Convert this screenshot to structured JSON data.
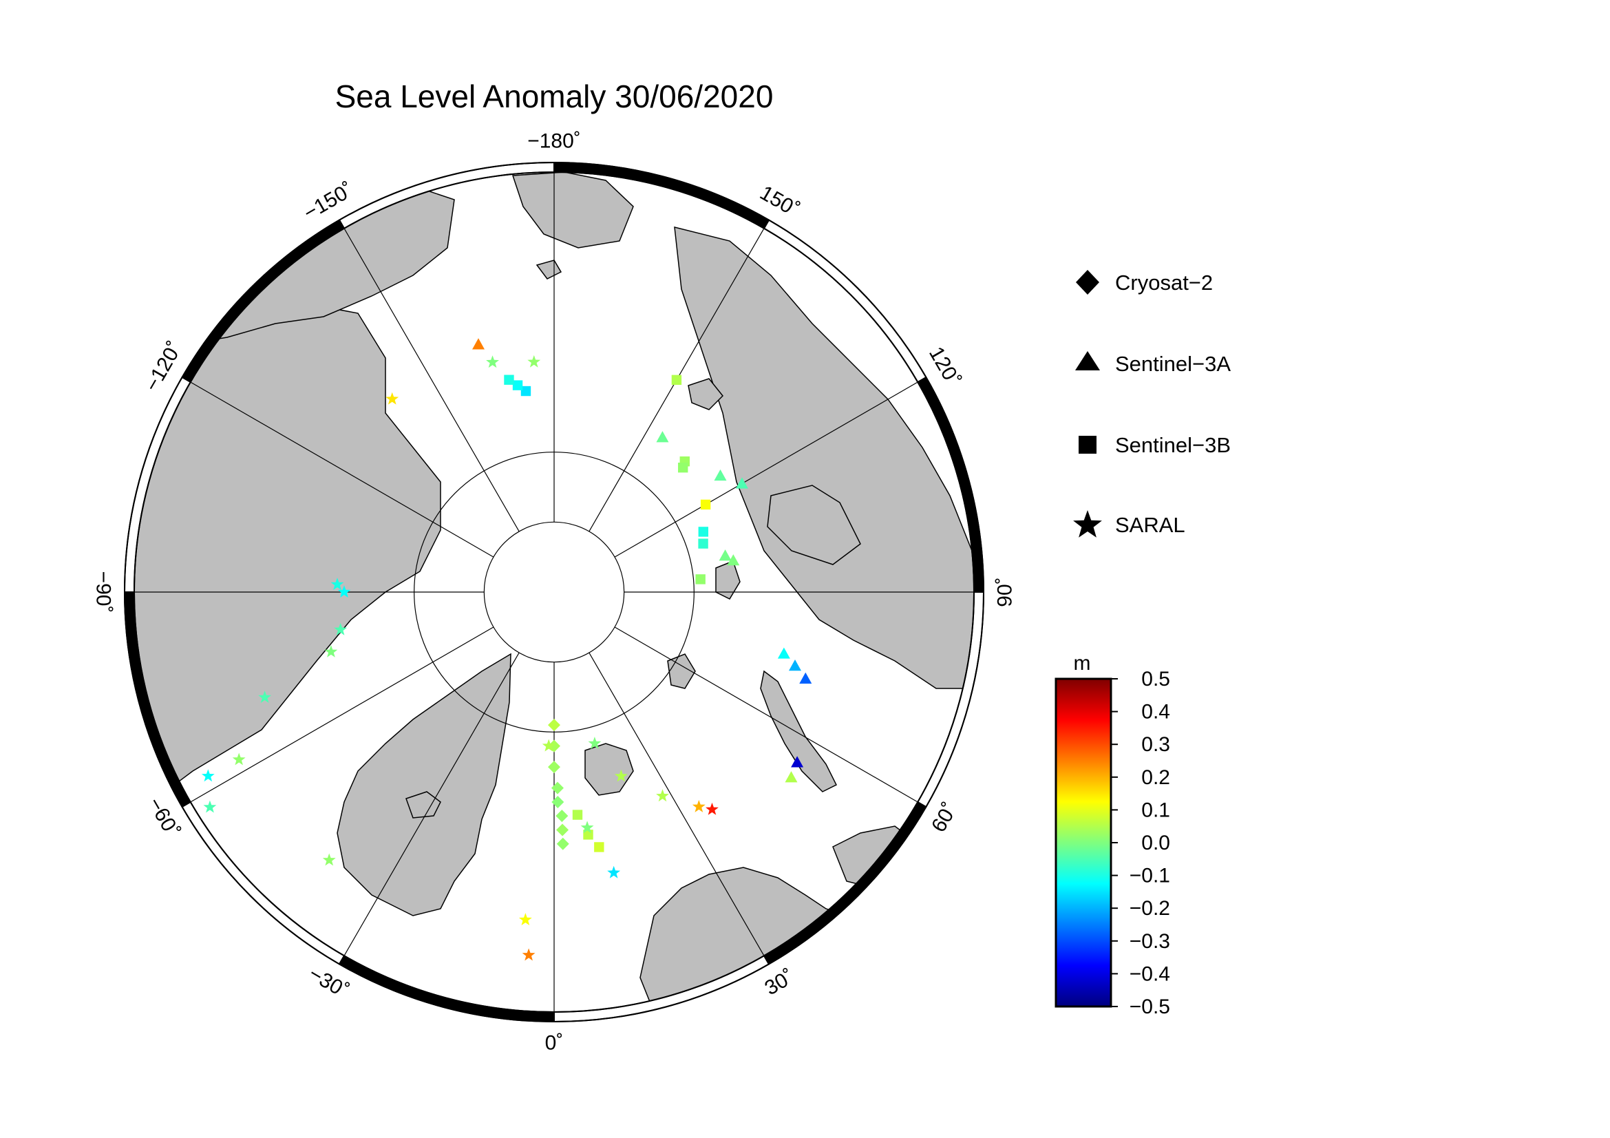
{
  "title": "Sea Level Anomaly 30/06/2020",
  "map": {
    "projection": "north-polar-stereographic",
    "ocean_color": "#ffffff",
    "land_color": "#bebebe",
    "meridian_labels": [
      {
        "lon": -180,
        "text": "−180˚"
      },
      {
        "lon": -150,
        "text": "−150˚"
      },
      {
        "lon": -120,
        "text": "−120˚"
      },
      {
        "lon": -90,
        "text": "−90˚"
      },
      {
        "lon": -60,
        "text": "−60˚"
      },
      {
        "lon": -30,
        "text": "−30˚"
      },
      {
        "lon": 0,
        "text": "0˚"
      },
      {
        "lon": 30,
        "text": "30˚"
      },
      {
        "lon": 60,
        "text": "60˚"
      },
      {
        "lon": 90,
        "text": "90˚"
      },
      {
        "lon": 120,
        "text": "120˚"
      },
      {
        "lon": 150,
        "text": "150˚"
      }
    ]
  },
  "legend": [
    {
      "symbol": "diamond",
      "label": "Cryosat−2"
    },
    {
      "symbol": "triangle",
      "label": "Sentinel−3A"
    },
    {
      "symbol": "square",
      "label": "Sentinel−3B"
    },
    {
      "symbol": "star",
      "label": "SARAL"
    }
  ],
  "colorbar": {
    "unit": "m",
    "min": -0.5,
    "max": 0.5,
    "tick_labels": [
      "0.5",
      "0.4",
      "0.3",
      "0.2",
      "0.1",
      "0.0",
      "−0.1",
      "−0.2",
      "−0.3",
      "−0.4",
      "−0.5"
    ],
    "colormap": [
      "#00007f",
      "#0000ff",
      "#007fff",
      "#00ffff",
      "#7fff7f",
      "#ffff00",
      "#ff7f00",
      "#ff0000",
      "#7f0000"
    ]
  },
  "chart_data": {
    "type": "scatter",
    "title": "Sea Level Anomaly 30/06/2020",
    "value_unit": "m",
    "value_range": [
      -0.5,
      0.5
    ],
    "series": [
      {
        "name": "Cryosat−2",
        "symbol": "diamond",
        "points": [
          {
            "lon": 2,
            "lat": 72.0,
            "sla": 0.02
          },
          {
            "lon": 2,
            "lat": 73.0,
            "sla": 0.03
          },
          {
            "lon": 2,
            "lat": 74.0,
            "sla": 0.02
          },
          {
            "lon": 1,
            "lat": 75.0,
            "sla": 0.01
          },
          {
            "lon": 1,
            "lat": 76.0,
            "sla": 0.02
          },
          {
            "lon": 0,
            "lat": 77.5,
            "sla": 0.03
          },
          {
            "lon": 0,
            "lat": 79.0,
            "sla": 0.04
          },
          {
            "lon": 0,
            "lat": 80.5,
            "sla": 0.06
          }
        ]
      },
      {
        "name": "Sentinel−3A",
        "symbol": "triangle",
        "points": [
          {
            "lon": -163,
            "lat": 71.5,
            "sla": 0.25
          },
          {
            "lon": 120,
            "lat": 74.5,
            "sla": -0.05
          },
          {
            "lon": 125,
            "lat": 75.5,
            "sla": -0.03
          },
          {
            "lon": 145,
            "lat": 76.5,
            "sla": -0.02
          },
          {
            "lon": 102,
            "lat": 77.5,
            "sla": -0.01
          },
          {
            "lon": 100,
            "lat": 77.0,
            "sla": 0.0
          },
          {
            "lon": 75,
            "lat": 73.0,
            "sla": -0.12
          },
          {
            "lon": 73,
            "lat": 72.0,
            "sla": -0.2
          },
          {
            "lon": 71,
            "lat": 71.0,
            "sla": -0.28
          },
          {
            "lon": 55,
            "lat": 68.8,
            "sla": -0.42
          },
          {
            "lon": 52,
            "lat": 68.5,
            "sla": 0.05
          }
        ]
      },
      {
        "name": "Sentinel−3B",
        "symbol": "square",
        "points": [
          {
            "lon": -172,
            "lat": 75.5,
            "sla": -0.15
          },
          {
            "lon": -170,
            "lat": 75.0,
            "sla": -0.12
          },
          {
            "lon": -168,
            "lat": 74.5,
            "sla": -0.1
          },
          {
            "lon": 150,
            "lat": 72.5,
            "sla": 0.05
          },
          {
            "lon": 135,
            "lat": 76.8,
            "sla": 0.03
          },
          {
            "lon": 134,
            "lat": 77.2,
            "sla": 0.02
          },
          {
            "lon": 120,
            "lat": 77.5,
            "sla": 0.12
          },
          {
            "lon": 112,
            "lat": 78.5,
            "sla": -0.1
          },
          {
            "lon": 108,
            "lat": 78.8,
            "sla": -0.08
          },
          {
            "lon": 95,
            "lat": 79.5,
            "sla": 0.02
          },
          {
            "lon": 10,
            "lat": 71.5,
            "sla": 0.08
          },
          {
            "lon": 8,
            "lat": 72.5,
            "sla": 0.06
          },
          {
            "lon": 6,
            "lat": 74.0,
            "sla": 0.05
          }
        ]
      },
      {
        "name": "SARAL",
        "symbol": "star",
        "points": [
          {
            "lon": -175,
            "lat": 73.5,
            "sla": 0.02
          },
          {
            "lon": -165,
            "lat": 73.0,
            "sla": 0.0
          },
          {
            "lon": -140,
            "lat": 72.0,
            "sla": 0.15
          },
          {
            "lon": -92,
            "lat": 74.5,
            "sla": -0.1
          },
          {
            "lon": -90,
            "lat": 75.0,
            "sla": -0.12
          },
          {
            "lon": -80,
            "lat": 74.5,
            "sla": -0.05
          },
          {
            "lon": -75,
            "lat": 73.5,
            "sla": 0.0
          },
          {
            "lon": -70,
            "lat": 68.0,
            "sla": -0.05
          },
          {
            "lon": -62,
            "lat": 64.5,
            "sla": 0.02
          },
          {
            "lon": -62,
            "lat": 62.0,
            "sla": -0.12
          },
          {
            "lon": -58,
            "lat": 61.0,
            "sla": -0.05
          },
          {
            "lon": -40,
            "lat": 65.0,
            "sla": 0.02
          },
          {
            "lon": -5,
            "lat": 66.5,
            "sla": 0.12
          },
          {
            "lon": -4,
            "lat": 64.0,
            "sla": 0.25
          },
          {
            "lon": -2,
            "lat": 79.0,
            "sla": 0.05
          },
          {
            "lon": 8,
            "lat": 73.0,
            "sla": 0.0
          },
          {
            "lon": 12,
            "lat": 69.5,
            "sla": -0.15
          },
          {
            "lon": 15,
            "lat": 78.8,
            "sla": 0.0
          },
          {
            "lon": 20,
            "lat": 76.0,
            "sla": 0.05
          },
          {
            "lon": 28,
            "lat": 73.5,
            "sla": 0.05
          },
          {
            "lon": 34,
            "lat": 71.5,
            "sla": 0.2
          },
          {
            "lon": 36,
            "lat": 70.8,
            "sla": 0.35
          }
        ]
      }
    ]
  }
}
